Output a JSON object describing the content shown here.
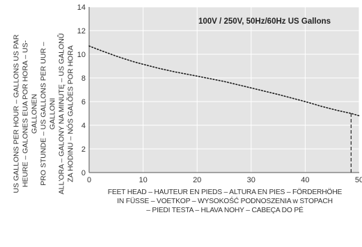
{
  "chart_data": {
    "type": "line",
    "title": "100V / 250V, 50Hz/60Hz US Gallons",
    "xlabel_lines": [
      "FEET HEAD – HAUTEUR EN PIEDS – ALTURA EN PIES – FÖRDERHÖHE",
      "IN FÜSSE – VOETKOP – WYSOKOŚĆ PODNOSZENIA w STOPACH",
      "– PIEDI TESTA – HLAVA NOHY – CABEÇA DO PÉ"
    ],
    "ylabel_lines": [
      "US GALLONS PER HOUR – GALLONS US PAR",
      "HEURE – GALONES EUA POR HORA – US-GALLONEN",
      "PRO STUNDE – US GALLONS PER UUR – GALLONI",
      "ALL'ORA – GALONY NA MINUTĘ – US GALONŮ",
      "ZA HODINU – NÓS GALÕES POR HORA"
    ],
    "xlim": [
      0,
      50
    ],
    "ylim": [
      0,
      14
    ],
    "x_ticks": [
      0,
      10,
      20,
      30,
      40,
      50
    ],
    "y_ticks": [
      0,
      2,
      4,
      6,
      8,
      10,
      12,
      14
    ],
    "grid": true,
    "series": [
      {
        "x": [
          0,
          2,
          5,
          8,
          10,
          13,
          16,
          20,
          25,
          30,
          35,
          40,
          43,
          46,
          48.5,
          50
        ],
        "y": [
          10.7,
          10.35,
          9.85,
          9.4,
          9.15,
          8.8,
          8.5,
          8.15,
          7.7,
          7.15,
          6.6,
          6.0,
          5.6,
          5.25,
          5.0,
          4.8
        ]
      }
    ],
    "max_head_marker_x": 48.5
  }
}
